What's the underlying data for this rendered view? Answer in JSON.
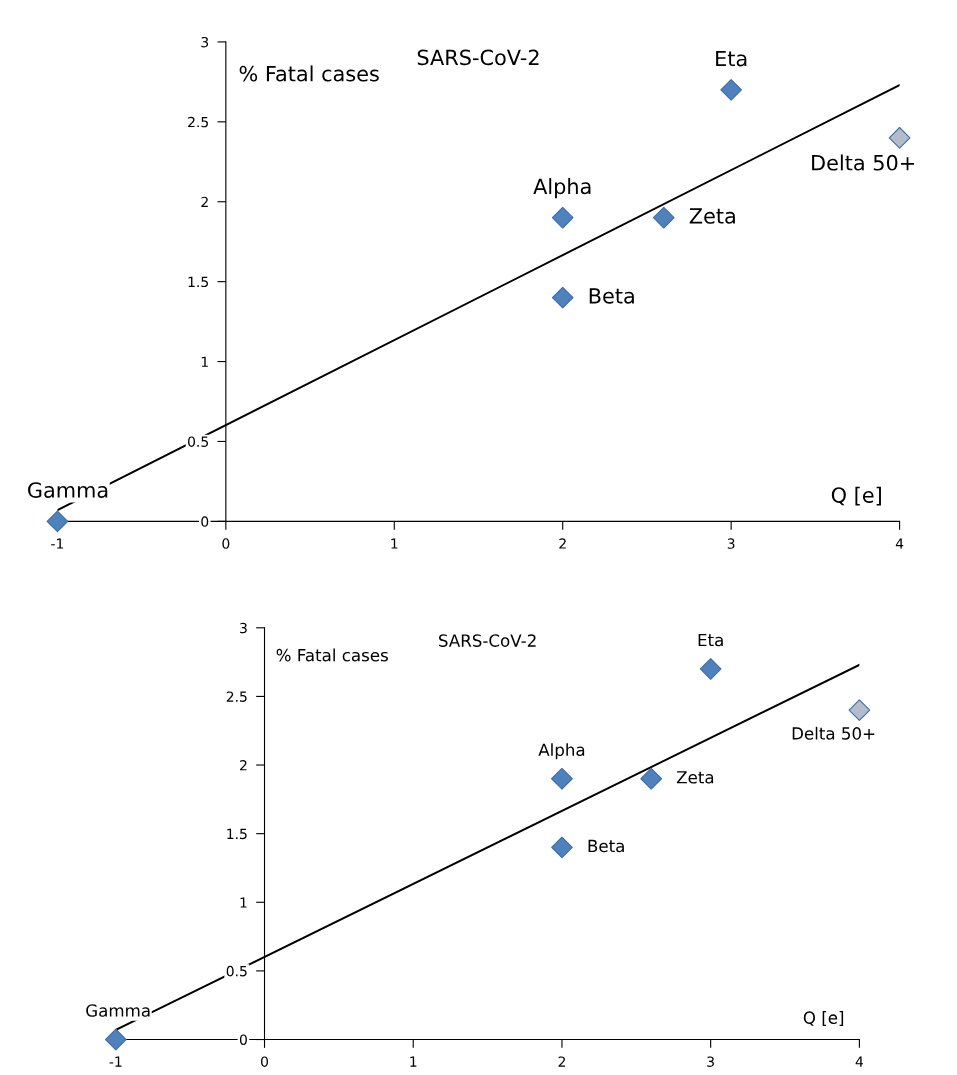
{
  "chart_data": [
    {
      "type": "scatter",
      "title": "SARS-CoV-2",
      "xlabel": "Q [e]",
      "ylabel": "% Fatal cases",
      "xlim": [
        -1,
        4
      ],
      "ylim": [
        0,
        3
      ],
      "xticks": [
        -1,
        0,
        1,
        2,
        3,
        4
      ],
      "yticks": [
        0,
        0.5,
        1,
        1.5,
        2,
        2.5,
        3
      ],
      "grid": false,
      "marker": "diamond",
      "legend": false,
      "series": [
        {
          "x": [
            -1,
            2,
            2,
            2.6,
            3,
            4
          ],
          "values": [
            0,
            1.9,
            1.4,
            1.9,
            2.7,
            2.4
          ],
          "colors": [
            "#4f81bd",
            "#4f81bd",
            "#4f81bd",
            "#4f81bd",
            "#4f81bd",
            "#b4bccb"
          ]
        },
        {
          "type": "line",
          "x": [
            -1,
            4
          ],
          "values": [
            0.07,
            2.73
          ],
          "color": "#000000",
          "line_style": "solid",
          "marker": "none"
        }
      ],
      "annotations": [
        {
          "text": "Gamma",
          "x": -1,
          "y": 0
        },
        {
          "text": "Alpha",
          "x": 2,
          "y": 1.9
        },
        {
          "text": "Beta",
          "x": 2,
          "y": 1.4
        },
        {
          "text": "Zeta",
          "x": 2.6,
          "y": 1.9
        },
        {
          "text": "Eta",
          "x": 3,
          "y": 2.7
        },
        {
          "text": "Delta 50+",
          "x": 4,
          "y": 2.4
        }
      ]
    },
    {
      "type": "scatter",
      "title": "SARS-CoV-2",
      "xlabel": "Q [e]",
      "ylabel": "% Fatal cases",
      "xlim": [
        -1,
        4
      ],
      "ylim": [
        0,
        3
      ],
      "xticks": [
        -1,
        0,
        1,
        2,
        3,
        4
      ],
      "yticks": [
        0,
        0.5,
        1,
        1.5,
        2,
        2.5,
        3
      ],
      "grid": false,
      "marker": "diamond",
      "legend": false,
      "series": [
        {
          "type": "scatter",
          "x": [
            -1,
            2,
            2,
            2.6,
            3,
            4
          ],
          "values": [
            0,
            1.9,
            1.4,
            1.9,
            2.7,
            2.4
          ],
          "colors": [
            "#4f81bd",
            "#4f81bd",
            "#4f81bd",
            "#4f81bd",
            "#4f81bd",
            "#b4bccb"
          ]
        },
        {
          "type": "line",
          "x": [
            -1,
            4
          ],
          "values": [
            0.07,
            2.73
          ],
          "color": "#000000",
          "line_style": "solid",
          "marker": "none"
        }
      ],
      "annotations": [
        {
          "text": "Gamma",
          "x": -1,
          "y": 0
        },
        {
          "text": "Alpha",
          "x": 2,
          "y": 1.9
        },
        {
          "text": "Beta",
          "x": 2,
          "y": 1.4
        },
        {
          "text": "Zeta",
          "x": 2.6,
          "y": 1.9
        },
        {
          "text": "Eta",
          "x": 3,
          "y": 2.7
        },
        {
          "text": "Delta 50+",
          "x": 4,
          "y": 2.4
        }
      ]
    }
  ]
}
